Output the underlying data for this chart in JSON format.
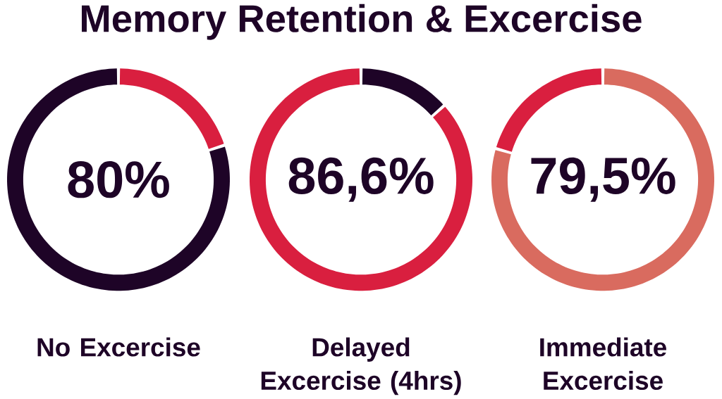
{
  "chart_data": [
    {
      "type": "donut",
      "title": "Memory Retention & Excercise",
      "categories": [
        null,
        "No Excercise"
      ],
      "values": [
        20,
        80
      ],
      "colors": [
        "#d91f3f",
        "#1e0427"
      ],
      "value_labels": [
        null,
        "80%"
      ]
    },
    {
      "type": "donut",
      "categories": [
        null,
        "Delayed Excercise (4hrs)"
      ],
      "values": [
        13.4,
        86.6
      ],
      "colors": [
        "#1e0427",
        "#d91f3f"
      ],
      "value_labels": [
        null,
        "86,6%"
      ]
    },
    {
      "type": "donut",
      "categories": [
        "Immediate Excercise",
        null
      ],
      "values": [
        79.5,
        20.5
      ],
      "colors": [
        "#d96b5f",
        "#d91f3f"
      ],
      "value_labels": [
        "79,5%",
        null
      ]
    }
  ]
}
